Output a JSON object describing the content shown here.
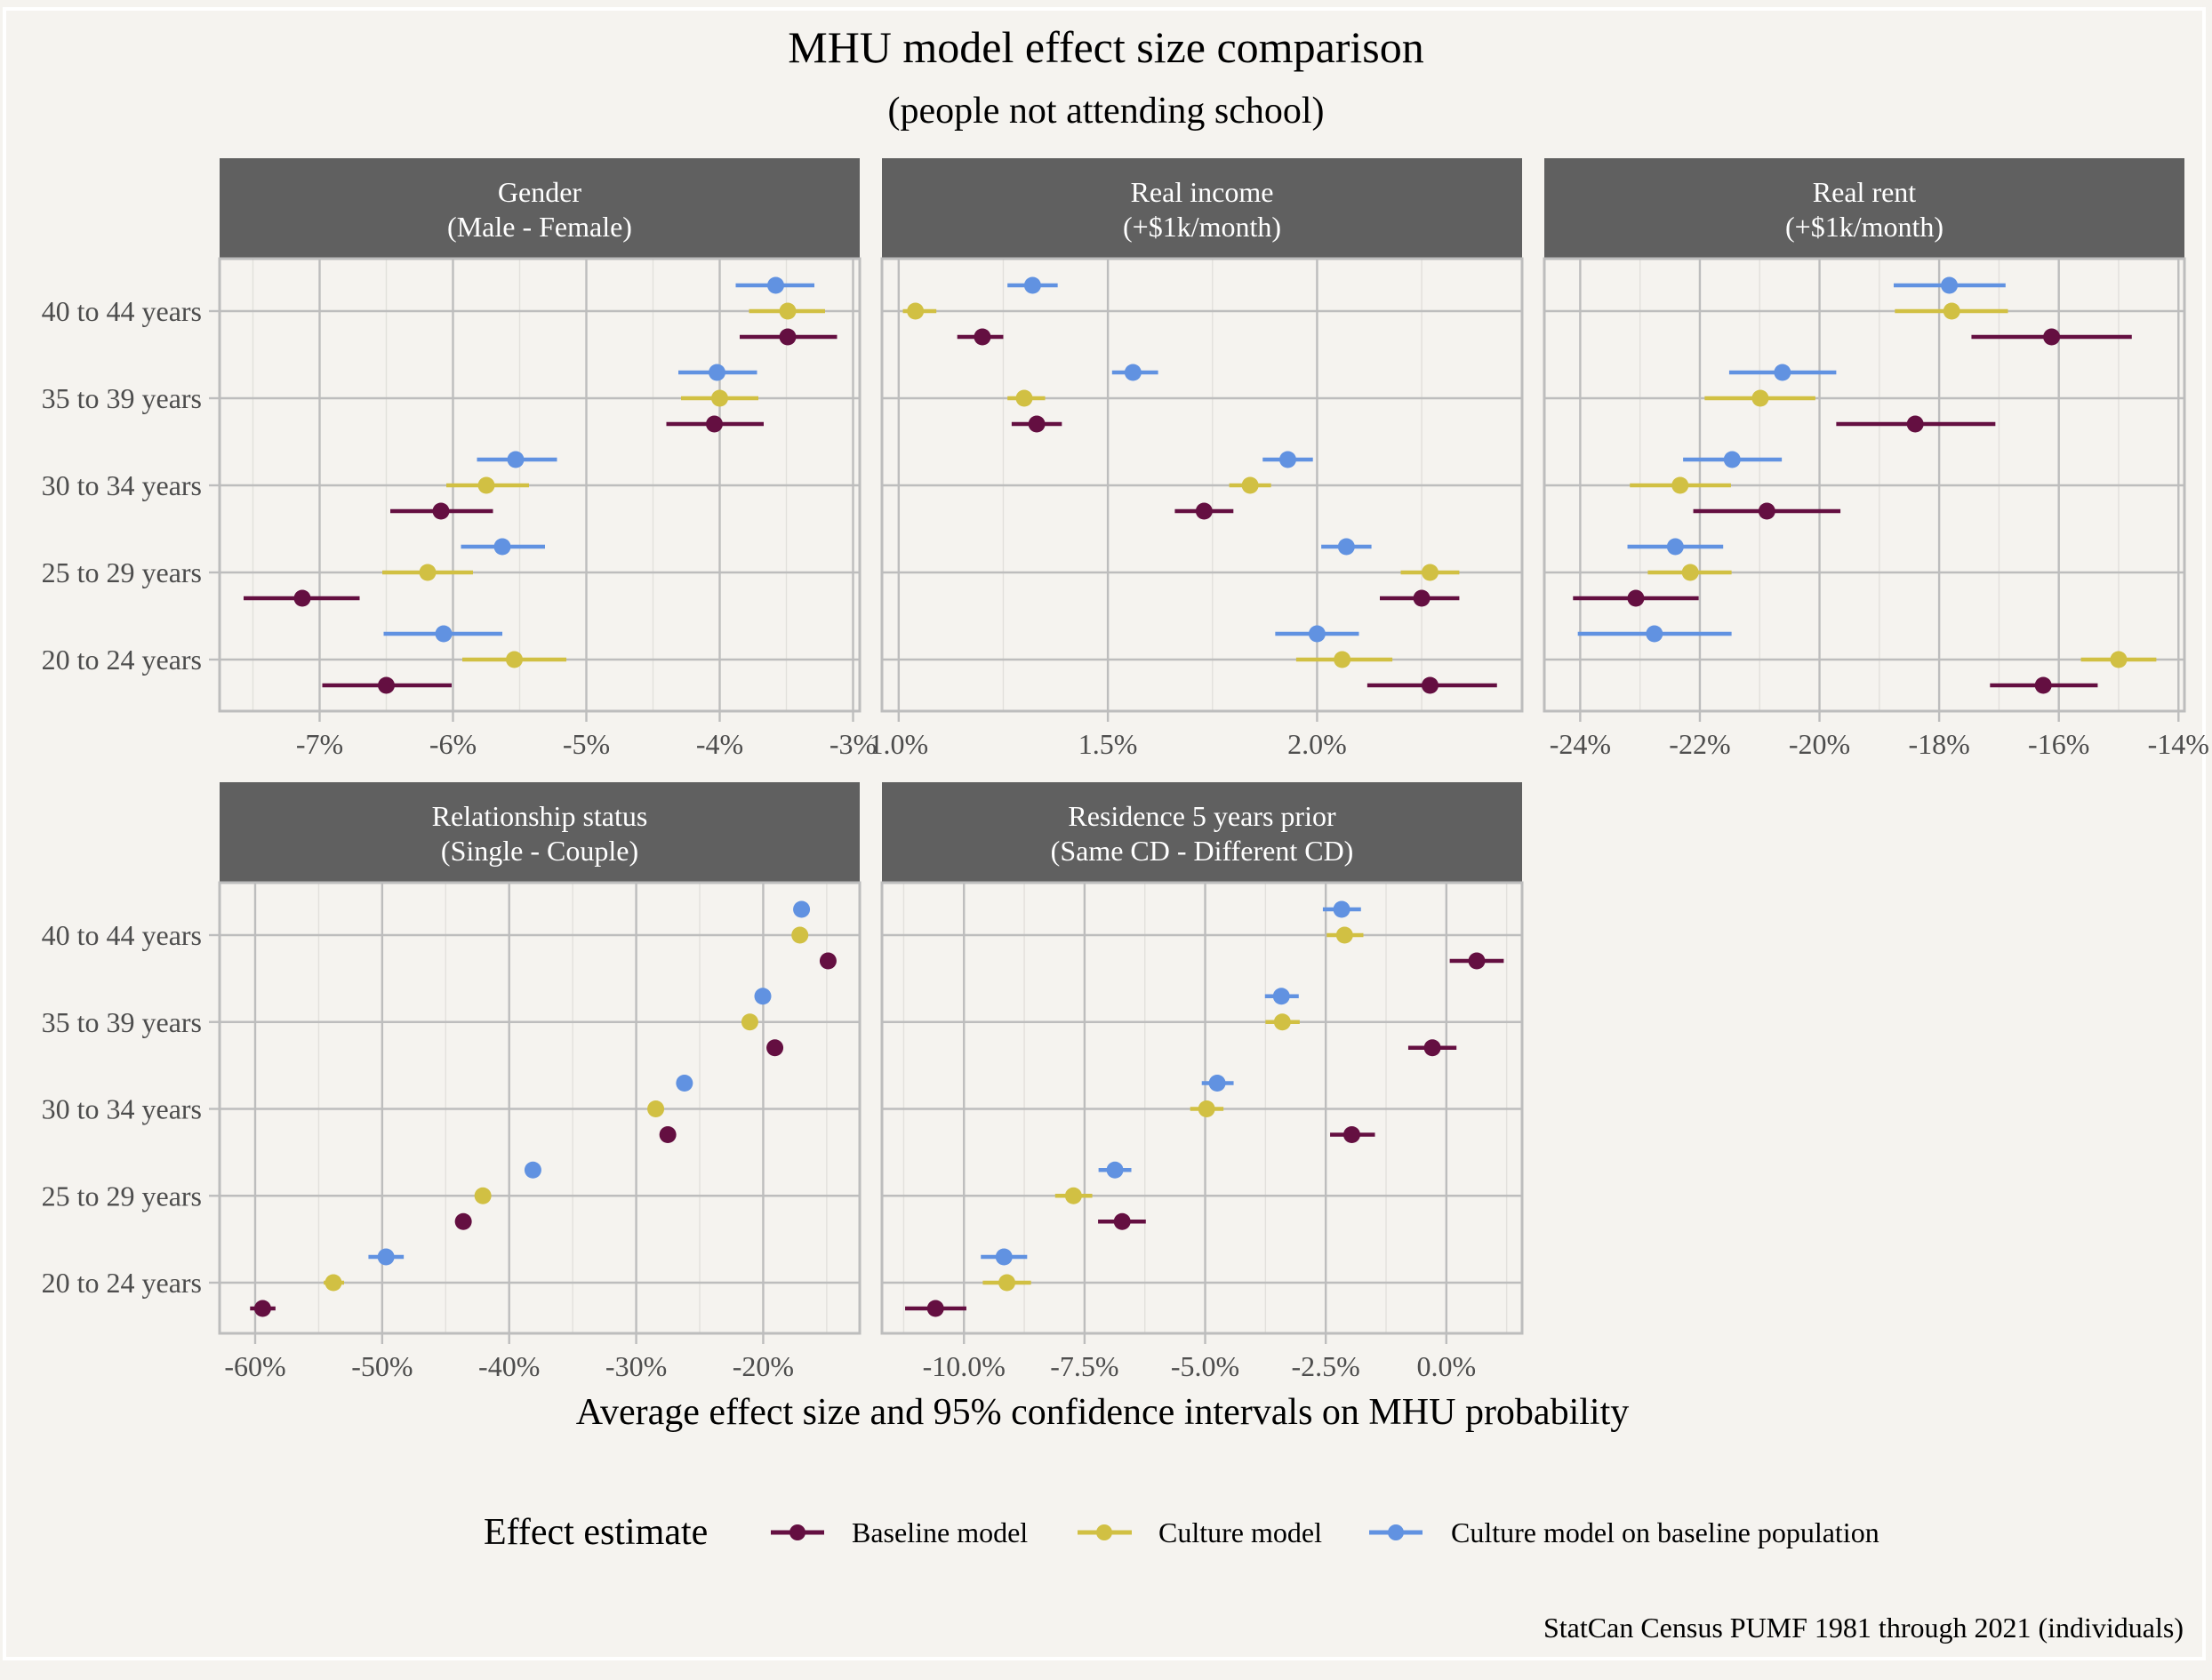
{
  "title": "MHU model effect size comparison",
  "subtitle": "(people not attending school)",
  "x_axis_title": "Average effect size and 95% confidence intervals on MHU probability",
  "caption": "StatCan Census PUMF 1981 through 2021 (individuals)",
  "legend": {
    "title": "Effect estimate",
    "entries": [
      {
        "key": "baseline",
        "label": "Baseline model",
        "color": "#640f41"
      },
      {
        "key": "culture",
        "label": "Culture model",
        "color": "#d1c043"
      },
      {
        "key": "culture_base",
        "label": "Culture model on baseline population",
        "color": "#6192e1"
      }
    ]
  },
  "colors": {
    "background": "#f5f3ef",
    "strip": "#606060",
    "grid": "#bdbdbd",
    "baseline": "#640f41",
    "culture": "#d1c043",
    "culture_base": "#6192e1"
  },
  "chart_data": {
    "type": "scatter",
    "subtype": "dot-and-whisker (faceted)",
    "title": "MHU model effect size comparison",
    "subtitle": "(people not attending school)",
    "xlabel": "Average effect size and 95% confidence intervals on MHU probability",
    "ylabel": "",
    "categories": [
      "40 to 44 years",
      "35 to 39 years",
      "30 to 34 years",
      "25 to 29 years",
      "20 to 24 years"
    ],
    "series_names": [
      "Baseline model",
      "Culture model",
      "Culture model on baseline population"
    ],
    "legend_position": "bottom",
    "grid": true,
    "unit": "percent",
    "panels": [
      {
        "strip": [
          "Gender",
          "(Male - Female)"
        ],
        "xlim": [
          -7.75,
          -2.95
        ],
        "major_ticks": [
          -7,
          -6,
          -5,
          -4,
          -3
        ],
        "minor_ticks": [
          -7.5,
          -6.5,
          -5.5,
          -4.5,
          -3.5
        ],
        "tick_labels": [
          "-7%",
          "-6%",
          "-5%",
          "-4%",
          "-3%"
        ],
        "series": [
          {
            "name": "Baseline model",
            "values": [
              {
                "est": -3.49,
                "lo": -3.85,
                "hi": -3.12
              },
              {
                "est": -4.04,
                "lo": -4.4,
                "hi": -3.67
              },
              {
                "est": -6.09,
                "lo": -6.47,
                "hi": -5.7
              },
              {
                "est": -7.13,
                "lo": -7.57,
                "hi": -6.7
              },
              {
                "est": -6.5,
                "lo": -6.98,
                "hi": -6.01
              }
            ]
          },
          {
            "name": "Culture model",
            "values": [
              {
                "est": -3.49,
                "lo": -3.78,
                "hi": -3.21
              },
              {
                "est": -4.0,
                "lo": -4.29,
                "hi": -3.71
              },
              {
                "est": -5.75,
                "lo": -6.05,
                "hi": -5.43
              },
              {
                "est": -6.19,
                "lo": -6.53,
                "hi": -5.85
              },
              {
                "est": -5.54,
                "lo": -5.93,
                "hi": -5.15
              }
            ]
          },
          {
            "name": "Culture model on baseline population",
            "values": [
              {
                "est": -3.58,
                "lo": -3.88,
                "hi": -3.29
              },
              {
                "est": -4.02,
                "lo": -4.31,
                "hi": -3.72
              },
              {
                "est": -5.53,
                "lo": -5.82,
                "hi": -5.22
              },
              {
                "est": -5.63,
                "lo": -5.94,
                "hi": -5.31
              },
              {
                "est": -6.07,
                "lo": -6.52,
                "hi": -5.63
              }
            ]
          }
        ]
      },
      {
        "strip": [
          "Real income",
          "(+$1k/month)"
        ],
        "xlim": [
          0.96,
          2.49
        ],
        "major_ticks": [
          1.0,
          1.5,
          2.0
        ],
        "minor_ticks": [
          1.25,
          1.75,
          2.25
        ],
        "tick_labels": [
          "1.0%",
          "1.5%",
          "2.0%"
        ],
        "series": [
          {
            "name": "Baseline model",
            "values": [
              {
                "est": 1.2,
                "lo": 1.14,
                "hi": 1.25
              },
              {
                "est": 1.33,
                "lo": 1.27,
                "hi": 1.39
              },
              {
                "est": 1.73,
                "lo": 1.66,
                "hi": 1.8
              },
              {
                "est": 2.25,
                "lo": 2.15,
                "hi": 2.34
              },
              {
                "est": 2.27,
                "lo": 2.12,
                "hi": 2.43
              }
            ]
          },
          {
            "name": "Culture model",
            "values": [
              {
                "est": 1.04,
                "lo": 1.01,
                "hi": 1.09
              },
              {
                "est": 1.3,
                "lo": 1.26,
                "hi": 1.35
              },
              {
                "est": 1.84,
                "lo": 1.79,
                "hi": 1.89
              },
              {
                "est": 2.27,
                "lo": 2.2,
                "hi": 2.34
              },
              {
                "est": 2.06,
                "lo": 1.95,
                "hi": 2.18
              }
            ]
          },
          {
            "name": "Culture model on baseline population",
            "values": [
              {
                "est": 1.32,
                "lo": 1.26,
                "hi": 1.38
              },
              {
                "est": 1.56,
                "lo": 1.51,
                "hi": 1.62
              },
              {
                "est": 1.93,
                "lo": 1.87,
                "hi": 1.99
              },
              {
                "est": 2.07,
                "lo": 2.01,
                "hi": 2.13
              },
              {
                "est": 2.0,
                "lo": 1.9,
                "hi": 2.1
              }
            ]
          }
        ]
      },
      {
        "strip": [
          "Real rent",
          "(+$1k/month)"
        ],
        "xlim": [
          -24.6,
          -13.9
        ],
        "major_ticks": [
          -24,
          -22,
          -20,
          -18,
          -16,
          -14
        ],
        "minor_ticks": [
          -23,
          -21,
          -19,
          -17,
          -15
        ],
        "tick_labels": [
          "-24%",
          "-22%",
          "-20%",
          "-18%",
          "-16%",
          "-14%"
        ],
        "series": [
          {
            "name": "Baseline model",
            "values": [
              {
                "est": -16.12,
                "lo": -17.46,
                "hi": -14.78
              },
              {
                "est": -18.4,
                "lo": -19.72,
                "hi": -17.06
              },
              {
                "est": -20.88,
                "lo": -22.11,
                "hi": -19.65
              },
              {
                "est": -23.07,
                "lo": -24.12,
                "hi": -22.02
              },
              {
                "est": -16.26,
                "lo": -17.15,
                "hi": -15.35
              }
            ]
          },
          {
            "name": "Culture model",
            "values": [
              {
                "est": -17.79,
                "lo": -18.74,
                "hi": -16.85
              },
              {
                "est": -20.99,
                "lo": -21.92,
                "hi": -20.07
              },
              {
                "est": -22.33,
                "lo": -23.17,
                "hi": -21.48
              },
              {
                "est": -22.16,
                "lo": -22.87,
                "hi": -21.47
              },
              {
                "est": -15.0,
                "lo": -15.63,
                "hi": -14.37
              }
            ]
          },
          {
            "name": "Culture model on baseline population",
            "values": [
              {
                "est": -17.83,
                "lo": -18.76,
                "hi": -16.89
              },
              {
                "est": -20.62,
                "lo": -21.51,
                "hi": -19.72
              },
              {
                "est": -21.46,
                "lo": -22.28,
                "hi": -20.63
              },
              {
                "est": -22.41,
                "lo": -23.21,
                "hi": -21.61
              },
              {
                "est": -22.76,
                "lo": -24.04,
                "hi": -21.47
              }
            ]
          }
        ]
      },
      {
        "strip": [
          "Relationship status",
          "(Single - Couple)"
        ],
        "xlim": [
          -62.8,
          -12.4
        ],
        "major_ticks": [
          -60,
          -50,
          -40,
          -30,
          -20
        ],
        "minor_ticks": [
          -55,
          -45,
          -35,
          -25,
          -15
        ],
        "tick_labels": [
          "-60%",
          "-50%",
          "-40%",
          "-30%",
          "-20%"
        ],
        "series": [
          {
            "name": "Baseline model",
            "values": [
              {
                "est": -14.89,
                "lo": -15.2,
                "hi": -14.6
              },
              {
                "est": -19.08,
                "lo": -19.4,
                "hi": -18.8
              },
              {
                "est": -27.51,
                "lo": -27.8,
                "hi": -27.2
              },
              {
                "est": -43.61,
                "lo": -43.9,
                "hi": -43.3
              },
              {
                "est": -59.41,
                "lo": -60.4,
                "hi": -58.4
              }
            ]
          },
          {
            "name": "Culture model",
            "values": [
              {
                "est": -17.11,
                "lo": -17.4,
                "hi": -16.8
              },
              {
                "est": -21.05,
                "lo": -21.3,
                "hi": -20.8
              },
              {
                "est": -28.46,
                "lo": -28.7,
                "hi": -28.2
              },
              {
                "est": -42.07,
                "lo": -42.4,
                "hi": -41.8
              },
              {
                "est": -53.84,
                "lo": -54.6,
                "hi": -53.0
              }
            ]
          },
          {
            "name": "Culture model on baseline population",
            "values": [
              {
                "est": -16.98,
                "lo": -17.3,
                "hi": -16.7
              },
              {
                "est": -20.03,
                "lo": -20.3,
                "hi": -19.8
              },
              {
                "est": -26.2,
                "lo": -26.5,
                "hi": -25.9
              },
              {
                "est": -38.13,
                "lo": -38.4,
                "hi": -37.8
              },
              {
                "est": -49.7,
                "lo": -51.08,
                "hi": -48.3
              }
            ]
          }
        ]
      },
      {
        "strip": [
          "Residence 5 years prior",
          "(Same CD - Different CD)"
        ],
        "xlim": [
          -11.7,
          1.57
        ],
        "major_ticks": [
          -10,
          -7.5,
          -5,
          -2.5,
          0
        ],
        "minor_ticks": [
          -11.25,
          -8.75,
          -6.25,
          -3.75,
          -1.25,
          1.25
        ],
        "tick_labels": [
          "-10.0%",
          "-7.5%",
          "-5.0%",
          "-2.5%",
          "0.0%"
        ],
        "series": [
          {
            "name": "Baseline model",
            "values": [
              {
                "est": 0.63,
                "lo": 0.07,
                "hi": 1.19
              },
              {
                "est": -0.29,
                "lo": -0.79,
                "hi": 0.21
              },
              {
                "est": -1.96,
                "lo": -2.41,
                "hi": -1.48
              },
              {
                "est": -6.72,
                "lo": -7.22,
                "hi": -6.23
              },
              {
                "est": -10.59,
                "lo": -11.22,
                "hi": -9.95
              }
            ]
          },
          {
            "name": "Culture model",
            "values": [
              {
                "est": -2.11,
                "lo": -2.48,
                "hi": -1.72
              },
              {
                "est": -3.4,
                "lo": -3.75,
                "hi": -3.04
              },
              {
                "est": -4.97,
                "lo": -5.31,
                "hi": -4.62
              },
              {
                "est": -7.73,
                "lo": -8.11,
                "hi": -7.34
              },
              {
                "est": -9.11,
                "lo": -9.61,
                "hi": -8.61
              }
            ]
          },
          {
            "name": "Culture model on baseline population",
            "values": [
              {
                "est": -2.17,
                "lo": -2.56,
                "hi": -1.77
              },
              {
                "est": -3.42,
                "lo": -3.76,
                "hi": -3.06
              },
              {
                "est": -4.75,
                "lo": -5.07,
                "hi": -4.41
              },
              {
                "est": -6.87,
                "lo": -7.21,
                "hi": -6.53
              },
              {
                "est": -9.17,
                "lo": -9.65,
                "hi": -8.69
              }
            ]
          }
        ]
      }
    ]
  }
}
